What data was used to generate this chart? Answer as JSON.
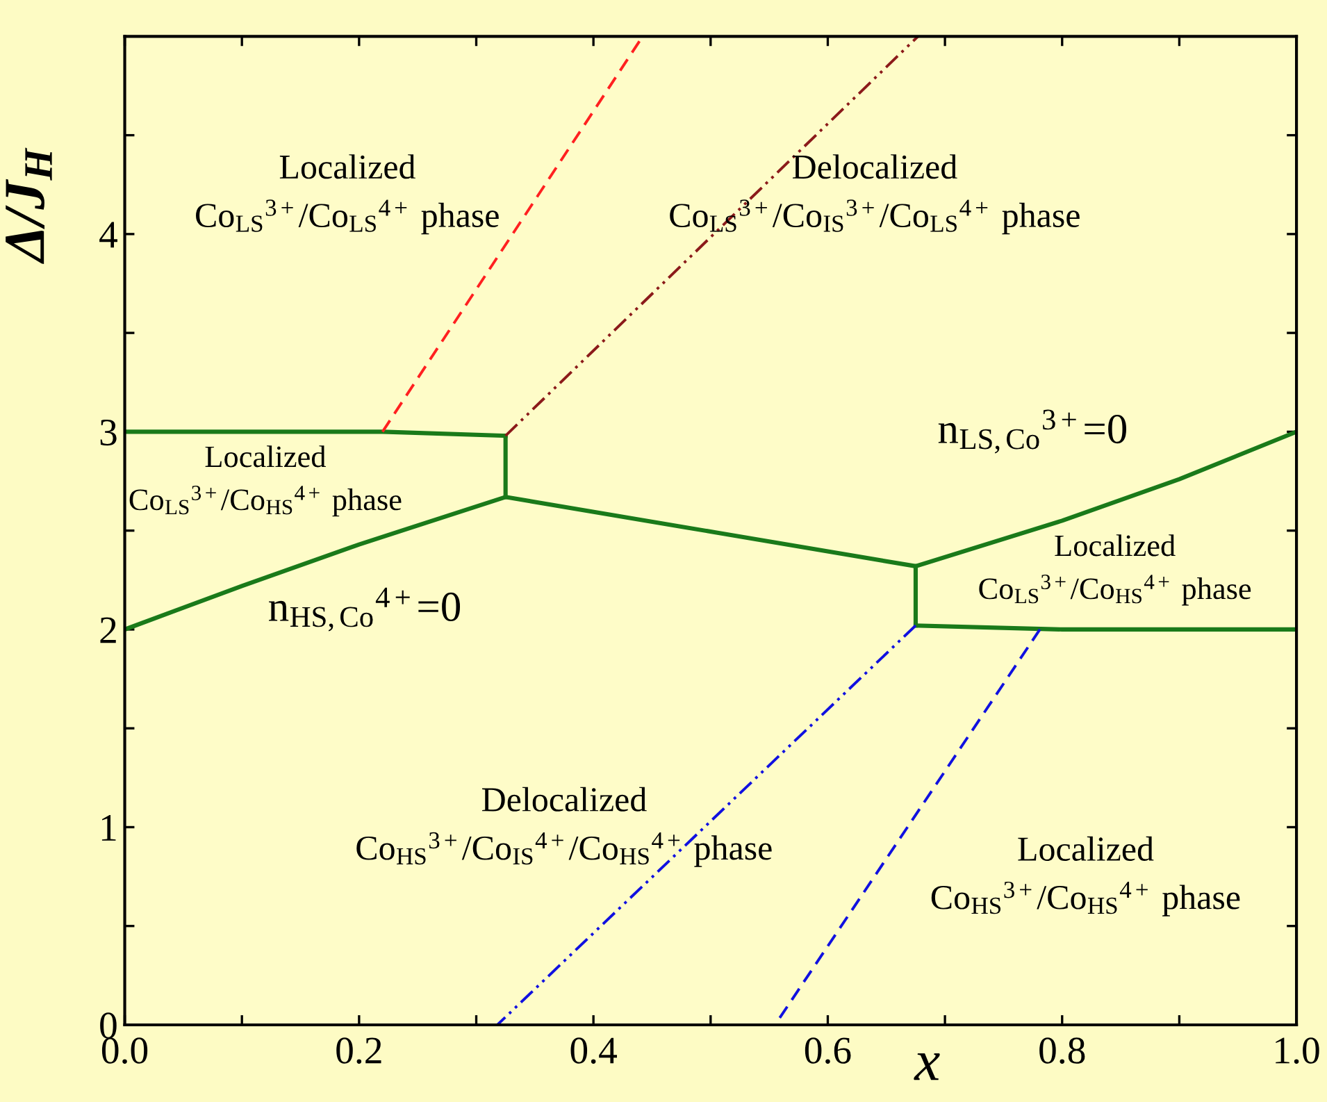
{
  "chart_data": {
    "type": "line",
    "xlabel": "x",
    "ylabel": "Δ/J$_{H}$",
    "xlim": [
      0,
      1.0
    ],
    "ylim": [
      0,
      5
    ],
    "xticks": [
      {
        "value": 0,
        "label": "0.0"
      },
      {
        "value": 0.1,
        "label": null
      },
      {
        "value": 0.2,
        "label": "0.2"
      },
      {
        "value": 0.3,
        "label": null
      },
      {
        "value": 0.4,
        "label": "0.4"
      },
      {
        "value": 0.5,
        "label": null
      },
      {
        "value": 0.6,
        "label": "0.6"
      },
      {
        "value": 0.7,
        "label": null
      },
      {
        "value": 0.8,
        "label": "0.8"
      },
      {
        "value": 0.9,
        "label": null
      },
      {
        "value": 1.0,
        "label": "1.0"
      }
    ],
    "yticks": [
      0,
      {
        "value": 0.5,
        "label": null
      },
      1,
      {
        "value": 1.5,
        "label": null
      },
      2,
      {
        "value": 2.5,
        "label": null
      },
      3,
      {
        "value": 3.5,
        "label": null
      },
      4,
      {
        "value": 4.5,
        "label": null
      }
    ],
    "grid": false,
    "marker": "none",
    "series": [
      {
        "color": "#1a7a1a",
        "line_style": "solid",
        "x": [
          0,
          0.22,
          0.325
        ],
        "values": [
          3.0,
          3.0,
          2.98
        ]
      },
      {
        "color": "#1a7a1a",
        "line_style": "solid",
        "x": [
          0,
          0.1,
          0.2,
          0.325
        ],
        "values": [
          2.0,
          2.22,
          2.43,
          2.67
        ]
      },
      {
        "color": "#1a7a1a",
        "line_style": "solid",
        "x": [
          0.325,
          0.325
        ],
        "values": [
          2.98,
          2.67
        ]
      },
      {
        "color": "#1a7a1a",
        "line_style": "solid",
        "x": [
          0.325,
          0.675
        ],
        "values": [
          2.67,
          2.32
        ]
      },
      {
        "color": "#1a7a1a",
        "line_style": "solid",
        "x": [
          0.675,
          0.675
        ],
        "values": [
          2.32,
          2.02
        ]
      },
      {
        "color": "#1a7a1a",
        "line_style": "solid",
        "x": [
          0.675,
          0.8,
          0.9,
          1.0
        ],
        "values": [
          2.32,
          2.55,
          2.76,
          3.0
        ]
      },
      {
        "color": "#1a7a1a",
        "line_style": "solid",
        "x": [
          0.675,
          0.8,
          1.0
        ],
        "values": [
          2.02,
          2.0,
          2.0
        ]
      },
      {
        "color": "#ff2020",
        "line_style": "dashed",
        "x": [
          0.22,
          0.442
        ],
        "values": [
          3.0,
          5.0
        ]
      },
      {
        "color": "#8b1a1a",
        "line_style": "dashdot",
        "x": [
          0.325,
          0.677
        ],
        "values": [
          2.98,
          5.0
        ]
      },
      {
        "color": "#1010e0",
        "line_style": "dashdot",
        "x": [
          0.675,
          0.318
        ],
        "values": [
          2.02,
          0
        ]
      },
      {
        "color": "#1010e0",
        "line_style": "dashed",
        "x": [
          0.781,
          0.555
        ],
        "values": [
          2.0,
          0
        ]
      }
    ],
    "annotations": [
      "Localized\nCo$_{LS}$$^{3+}$/Co$_{LS}$$^{4+}$ phase",
      "Delocalized\nCo$_{LS}$$^{3+}$/Co$_{IS}$$^{3+}$/Co$_{LS}$$^{4+}$ phase",
      "Localized\nCo$_{LS}$$^{3+}$/Co$_{HS}$$^{4+}$ phase",
      "n$_{LS,Co}$$^{3+}$=0",
      "n$_{HS,Co}$$^{4+}$=0",
      "Localized\nCo$_{LS}$$^{3+}$/Co$_{HS}$$^{4+}$ phase",
      "Delocalized\nCo$_{HS}$$^{3+}$/Co$_{IS}$$^{4+}$/Co$_{HS}$$^{4+}$ phase",
      "Localized\nCo$_{HS}$$^{3+}$/Co$_{HS}$$^{4+}$ phase"
    ]
  }
}
